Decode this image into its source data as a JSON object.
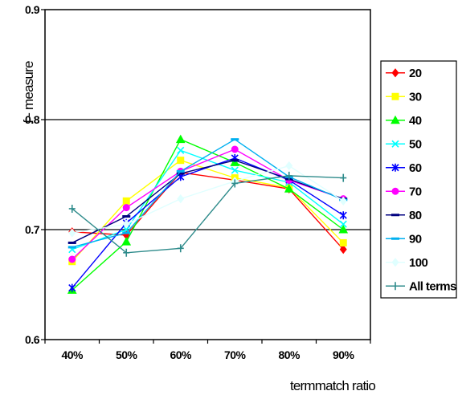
{
  "chart_data": {
    "type": "line",
    "xlabel": "termmatch ratio",
    "ylabel": "f - measure",
    "categories": [
      "40%",
      "50%",
      "60%",
      "70%",
      "80%",
      "90%"
    ],
    "ylim": [
      0.6,
      0.9
    ],
    "yticks": [
      "0.6",
      "0.7",
      "0.8",
      "0.9"
    ],
    "grid": "horizontal major lines at 0.7 and 0.8",
    "legend_position": "right",
    "series": [
      {
        "name": "20",
        "color": "#ff0000",
        "marker": "diamond",
        "values": [
          0.698,
          0.695,
          0.752,
          0.745,
          0.737,
          0.682
        ]
      },
      {
        "name": "30",
        "color": "#ffff00",
        "marker": "square",
        "values": [
          0.671,
          0.726,
          0.763,
          0.747,
          0.738,
          0.688
        ]
      },
      {
        "name": "40",
        "color": "#00ff00",
        "marker": "triangle",
        "values": [
          0.645,
          0.689,
          0.782,
          0.761,
          0.737,
          0.7
        ]
      },
      {
        "name": "50",
        "color": "#00ffff",
        "marker": "x",
        "values": [
          0.682,
          0.7,
          0.772,
          0.754,
          0.743,
          0.705
        ]
      },
      {
        "name": "60",
        "color": "#0000ff",
        "marker": "star",
        "values": [
          0.647,
          0.706,
          0.748,
          0.765,
          0.745,
          0.713
        ]
      },
      {
        "name": "70",
        "color": "#ff00ff",
        "marker": "circle",
        "values": [
          0.673,
          0.72,
          0.753,
          0.773,
          0.745,
          0.728
        ]
      },
      {
        "name": "80",
        "color": "#000080",
        "marker": "dash",
        "values": [
          0.688,
          0.712,
          0.751,
          0.763,
          0.746,
          0.728
        ]
      },
      {
        "name": "90",
        "color": "#00b0f0",
        "marker": "dash",
        "values": [
          0.684,
          0.697,
          0.753,
          0.782,
          0.748,
          0.727
        ]
      },
      {
        "name": "100",
        "color": "#e0ffff",
        "marker": "diamond",
        "values": [
          0.697,
          0.705,
          0.728,
          0.744,
          0.758,
          0.726
        ]
      },
      {
        "name": "All terms",
        "color": "#2e8b8b",
        "marker": "plus",
        "values": [
          0.719,
          0.679,
          0.683,
          0.742,
          0.749,
          0.747
        ]
      }
    ]
  }
}
